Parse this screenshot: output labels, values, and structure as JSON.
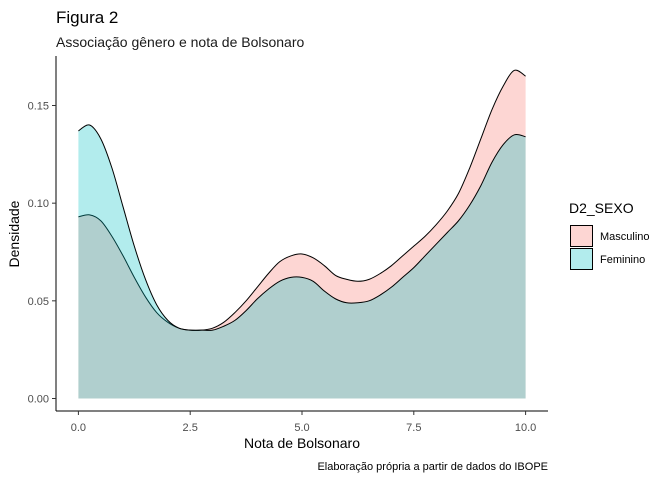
{
  "chart_data": {
    "type": "area",
    "title": "Figura 2",
    "subtitle": "Associação gênero e nota de Bolsonaro",
    "xlabel": "Nota de Bolsonaro",
    "ylabel": "Densidade",
    "caption": "Elaboração própria a partir de dados do IBOPE",
    "xlim": [
      0,
      10
    ],
    "ylim": [
      0,
      0.17
    ],
    "x_ticks": [
      0,
      2.5,
      5,
      7.5,
      10
    ],
    "x_tick_labels": [
      "0.0",
      "2.5",
      "5.0",
      "7.5",
      "10.0"
    ],
    "y_ticks": [
      0,
      0.05,
      0.1,
      0.15
    ],
    "y_tick_labels": [
      "0.00",
      "0.05",
      "0.10",
      "0.15"
    ],
    "grid": false,
    "legend": {
      "title": "D2_SEXO",
      "placement": "right"
    },
    "series": [
      {
        "name": "Masculino",
        "color": "#F8766D",
        "x": [
          0,
          0.25,
          0.5,
          0.75,
          1,
          1.25,
          1.5,
          1.75,
          2,
          2.25,
          2.5,
          2.75,
          3,
          3.25,
          3.5,
          3.75,
          4,
          4.25,
          4.5,
          4.75,
          5,
          5.25,
          5.5,
          5.75,
          6,
          6.25,
          6.5,
          6.75,
          7,
          7.25,
          7.5,
          7.75,
          8,
          8.25,
          8.5,
          8.75,
          9,
          9.25,
          9.5,
          9.75,
          10
        ],
        "values": [
          0.093,
          0.094,
          0.091,
          0.083,
          0.073,
          0.062,
          0.052,
          0.044,
          0.039,
          0.036,
          0.035,
          0.035,
          0.036,
          0.039,
          0.044,
          0.05,
          0.057,
          0.064,
          0.07,
          0.073,
          0.074,
          0.072,
          0.068,
          0.063,
          0.061,
          0.06,
          0.061,
          0.064,
          0.068,
          0.073,
          0.078,
          0.083,
          0.089,
          0.096,
          0.105,
          0.118,
          0.133,
          0.148,
          0.16,
          0.168,
          0.165
        ]
      },
      {
        "name": "Feminino",
        "color": "#00BFC4",
        "x": [
          0,
          0.25,
          0.5,
          0.75,
          1,
          1.25,
          1.5,
          1.75,
          2,
          2.25,
          2.5,
          2.75,
          3,
          3.25,
          3.5,
          3.75,
          4,
          4.25,
          4.5,
          4.75,
          5,
          5.25,
          5.5,
          5.75,
          6,
          6.25,
          6.5,
          6.75,
          7,
          7.25,
          7.5,
          7.75,
          8,
          8.25,
          8.5,
          8.75,
          9,
          9.25,
          9.5,
          9.75,
          10
        ],
        "values": [
          0.137,
          0.14,
          0.133,
          0.118,
          0.098,
          0.078,
          0.061,
          0.048,
          0.04,
          0.036,
          0.035,
          0.035,
          0.035,
          0.037,
          0.04,
          0.045,
          0.051,
          0.056,
          0.06,
          0.062,
          0.062,
          0.06,
          0.055,
          0.051,
          0.049,
          0.049,
          0.05,
          0.053,
          0.057,
          0.062,
          0.067,
          0.073,
          0.079,
          0.085,
          0.091,
          0.099,
          0.109,
          0.121,
          0.13,
          0.135,
          0.134
        ]
      }
    ]
  }
}
